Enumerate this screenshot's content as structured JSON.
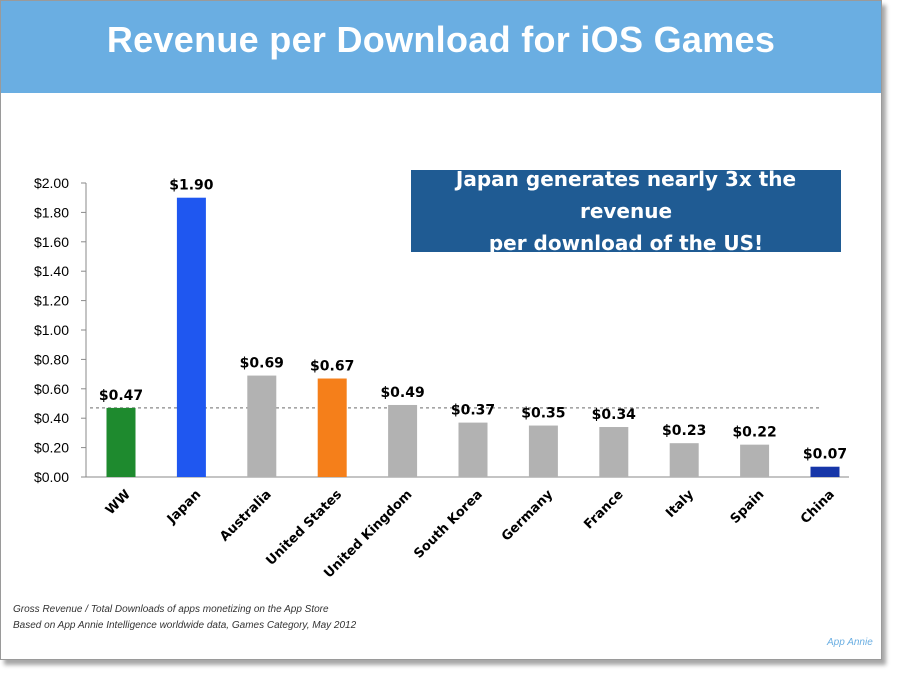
{
  "header": {
    "title": "Revenue per Download for iOS Games"
  },
  "callout": {
    "line1": "Japan generates nearly 3x the revenue",
    "line2": "per download of the US!"
  },
  "footnotes": {
    "line1": "Gross Revenue / Total Downloads of apps monetizing on the App Store",
    "line2": "Based on App Annie Intelligence worldwide data, Games Category, May 2012"
  },
  "brand": "App Annie",
  "colors": {
    "title_bar": "#6aaee2",
    "callout_bg": "#1f5b93",
    "ww": "#1e8a2e",
    "japan": "#1f57f0",
    "us": "#f57f1a",
    "china": "#1636a8",
    "other": "#b2b2b2",
    "reference_line": "#888888"
  },
  "chart_data": {
    "type": "bar",
    "title": "Revenue per Download for iOS Games",
    "xlabel": "",
    "ylabel": "",
    "ylim": [
      0,
      2.0
    ],
    "y_ticks": [
      "$0.00",
      "$0.20",
      "$0.40",
      "$0.60",
      "$0.80",
      "$1.00",
      "$1.20",
      "$1.40",
      "$1.60",
      "$1.80",
      "$2.00"
    ],
    "y_tick_values": [
      0,
      0.2,
      0.4,
      0.6,
      0.8,
      1.0,
      1.2,
      1.4,
      1.6,
      1.8,
      2.0
    ],
    "categories": [
      "WW",
      "Japan",
      "Australia",
      "United States",
      "United Kingdom",
      "South Korea",
      "Germany",
      "France",
      "Italy",
      "Spain",
      "China"
    ],
    "values": [
      0.47,
      1.9,
      0.69,
      0.67,
      0.49,
      0.37,
      0.35,
      0.34,
      0.23,
      0.22,
      0.07
    ],
    "labels": [
      "$0.47",
      "$1.90",
      "$0.69",
      "$0.67",
      "$0.49",
      "$0.37",
      "$0.35",
      "$0.34",
      "$0.23",
      "$0.22",
      "$0.07"
    ],
    "bar_colors": [
      "#1e8a2e",
      "#1f57f0",
      "#b2b2b2",
      "#f57f1a",
      "#b2b2b2",
      "#b2b2b2",
      "#b2b2b2",
      "#b2b2b2",
      "#b2b2b2",
      "#b2b2b2",
      "#1636a8"
    ],
    "reference_line": {
      "value": 0.47,
      "style": "dashed"
    },
    "grid": false
  }
}
